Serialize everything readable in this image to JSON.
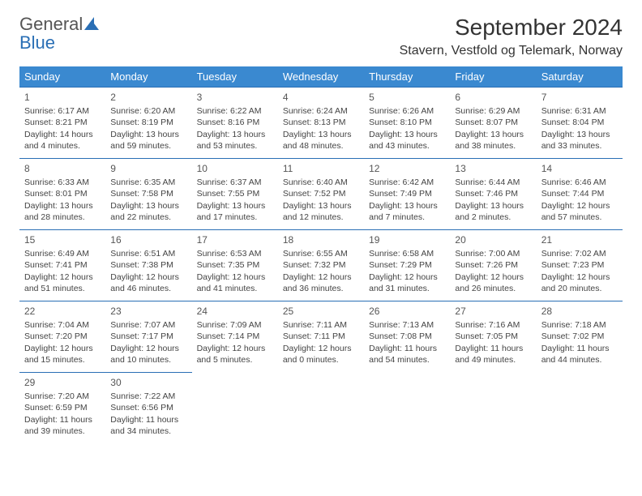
{
  "brand": {
    "part1": "General",
    "part2": "Blue"
  },
  "title": "September 2024",
  "location": "Stavern, Vestfold og Telemark, Norway",
  "colors": {
    "header_bg": "#3a89d0",
    "header_text": "#ffffff",
    "rule": "#2a6fb5",
    "body_text": "#444444",
    "brand_accent": "#2a6fb5"
  },
  "dayHeaders": [
    "Sunday",
    "Monday",
    "Tuesday",
    "Wednesday",
    "Thursday",
    "Friday",
    "Saturday"
  ],
  "weeks": [
    [
      {
        "n": "1",
        "sr": "6:17 AM",
        "ss": "8:21 PM",
        "dl": "14 hours and 4 minutes."
      },
      {
        "n": "2",
        "sr": "6:20 AM",
        "ss": "8:19 PM",
        "dl": "13 hours and 59 minutes."
      },
      {
        "n": "3",
        "sr": "6:22 AM",
        "ss": "8:16 PM",
        "dl": "13 hours and 53 minutes."
      },
      {
        "n": "4",
        "sr": "6:24 AM",
        "ss": "8:13 PM",
        "dl": "13 hours and 48 minutes."
      },
      {
        "n": "5",
        "sr": "6:26 AM",
        "ss": "8:10 PM",
        "dl": "13 hours and 43 minutes."
      },
      {
        "n": "6",
        "sr": "6:29 AM",
        "ss": "8:07 PM",
        "dl": "13 hours and 38 minutes."
      },
      {
        "n": "7",
        "sr": "6:31 AM",
        "ss": "8:04 PM",
        "dl": "13 hours and 33 minutes."
      }
    ],
    [
      {
        "n": "8",
        "sr": "6:33 AM",
        "ss": "8:01 PM",
        "dl": "13 hours and 28 minutes."
      },
      {
        "n": "9",
        "sr": "6:35 AM",
        "ss": "7:58 PM",
        "dl": "13 hours and 22 minutes."
      },
      {
        "n": "10",
        "sr": "6:37 AM",
        "ss": "7:55 PM",
        "dl": "13 hours and 17 minutes."
      },
      {
        "n": "11",
        "sr": "6:40 AM",
        "ss": "7:52 PM",
        "dl": "13 hours and 12 minutes."
      },
      {
        "n": "12",
        "sr": "6:42 AM",
        "ss": "7:49 PM",
        "dl": "13 hours and 7 minutes."
      },
      {
        "n": "13",
        "sr": "6:44 AM",
        "ss": "7:46 PM",
        "dl": "13 hours and 2 minutes."
      },
      {
        "n": "14",
        "sr": "6:46 AM",
        "ss": "7:44 PM",
        "dl": "12 hours and 57 minutes."
      }
    ],
    [
      {
        "n": "15",
        "sr": "6:49 AM",
        "ss": "7:41 PM",
        "dl": "12 hours and 51 minutes."
      },
      {
        "n": "16",
        "sr": "6:51 AM",
        "ss": "7:38 PM",
        "dl": "12 hours and 46 minutes."
      },
      {
        "n": "17",
        "sr": "6:53 AM",
        "ss": "7:35 PM",
        "dl": "12 hours and 41 minutes."
      },
      {
        "n": "18",
        "sr": "6:55 AM",
        "ss": "7:32 PM",
        "dl": "12 hours and 36 minutes."
      },
      {
        "n": "19",
        "sr": "6:58 AM",
        "ss": "7:29 PM",
        "dl": "12 hours and 31 minutes."
      },
      {
        "n": "20",
        "sr": "7:00 AM",
        "ss": "7:26 PM",
        "dl": "12 hours and 26 minutes."
      },
      {
        "n": "21",
        "sr": "7:02 AM",
        "ss": "7:23 PM",
        "dl": "12 hours and 20 minutes."
      }
    ],
    [
      {
        "n": "22",
        "sr": "7:04 AM",
        "ss": "7:20 PM",
        "dl": "12 hours and 15 minutes."
      },
      {
        "n": "23",
        "sr": "7:07 AM",
        "ss": "7:17 PM",
        "dl": "12 hours and 10 minutes."
      },
      {
        "n": "24",
        "sr": "7:09 AM",
        "ss": "7:14 PM",
        "dl": "12 hours and 5 minutes."
      },
      {
        "n": "25",
        "sr": "7:11 AM",
        "ss": "7:11 PM",
        "dl": "12 hours and 0 minutes."
      },
      {
        "n": "26",
        "sr": "7:13 AM",
        "ss": "7:08 PM",
        "dl": "11 hours and 54 minutes."
      },
      {
        "n": "27",
        "sr": "7:16 AM",
        "ss": "7:05 PM",
        "dl": "11 hours and 49 minutes."
      },
      {
        "n": "28",
        "sr": "7:18 AM",
        "ss": "7:02 PM",
        "dl": "11 hours and 44 minutes."
      }
    ],
    [
      {
        "n": "29",
        "sr": "7:20 AM",
        "ss": "6:59 PM",
        "dl": "11 hours and 39 minutes."
      },
      {
        "n": "30",
        "sr": "7:22 AM",
        "ss": "6:56 PM",
        "dl": "11 hours and 34 minutes."
      },
      null,
      null,
      null,
      null,
      null
    ]
  ],
  "labels": {
    "sunrise": "Sunrise:",
    "sunset": "Sunset:",
    "daylight": "Daylight:"
  }
}
